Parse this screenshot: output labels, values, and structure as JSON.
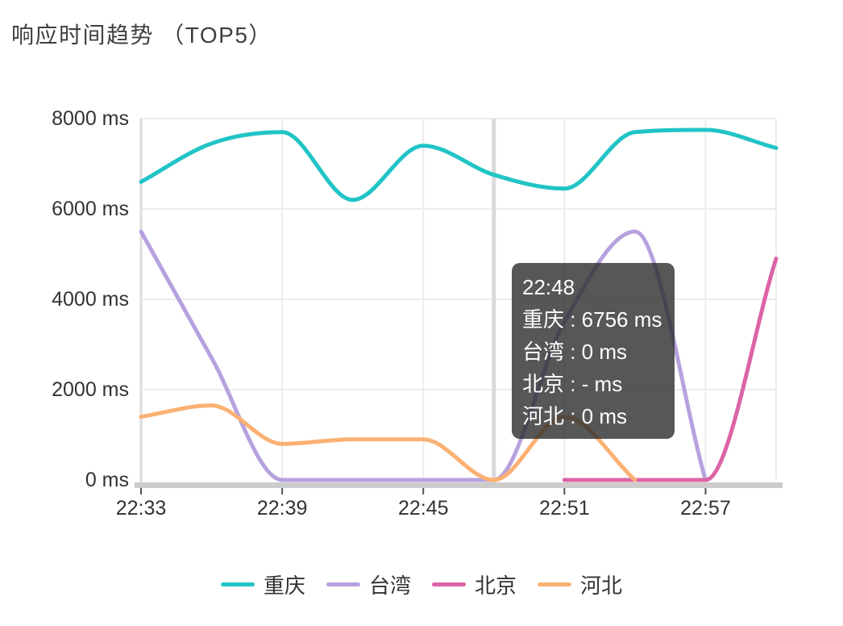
{
  "title": "响应时间趋势 （TOP5）",
  "chart_data": {
    "type": "line",
    "title": "响应时间趋势 （TOP5）",
    "smooth": true,
    "grid": true,
    "legend_position": "bottom",
    "unit": "ms",
    "ylim": [
      0,
      8000
    ],
    "x": [
      "22:33",
      "22:36",
      "22:39",
      "22:42",
      "22:45",
      "22:48",
      "22:51",
      "22:54",
      "22:57",
      "23:00"
    ],
    "x_axis_ticks": [
      "22:33",
      "22:39",
      "22:45",
      "22:51",
      "22:57"
    ],
    "y_axis_ticks": [
      {
        "value": 0,
        "label": "0 ms"
      },
      {
        "value": 2000,
        "label": "2000 ms"
      },
      {
        "value": 4000,
        "label": "4000 ms"
      },
      {
        "value": 6000,
        "label": "6000 ms"
      },
      {
        "value": 8000,
        "label": "8000 ms"
      }
    ],
    "series": [
      {
        "id": "chongqing",
        "name": "重庆",
        "color": "#21c4c6",
        "values": [
          6600,
          7450,
          7700,
          6200,
          7400,
          6756,
          6450,
          7700,
          7750,
          7350
        ]
      },
      {
        "id": "taiwan",
        "name": "台湾",
        "color": "#b6a2de",
        "values": [
          5500,
          2700,
          0,
          0,
          0,
          0,
          3500,
          5500,
          0,
          null
        ]
      },
      {
        "id": "beijing",
        "name": "北京",
        "color": "#dc64a6",
        "values": [
          null,
          null,
          null,
          null,
          null,
          null,
          0,
          0,
          0,
          4900
        ]
      },
      {
        "id": "hebei",
        "name": "河北",
        "color": "#fab173",
        "values": [
          1400,
          1650,
          800,
          900,
          900,
          0,
          1400,
          0,
          null,
          null
        ]
      }
    ],
    "hover_time": "22:48",
    "tooltip": {
      "time": "22:48",
      "rows": [
        {
          "id": "chongqing",
          "name": "重庆",
          "value": "6756 ms"
        },
        {
          "id": "taiwan",
          "name": "台湾",
          "value": "0 ms"
        },
        {
          "id": "beijing",
          "name": "北京",
          "value": "- ms"
        },
        {
          "id": "hebei",
          "name": "河北",
          "value": "0 ms"
        }
      ]
    },
    "style": {
      "grid_color": "#ececec",
      "axis_line_color": "#dcdcdc",
      "axis_band_color": "#cccccc",
      "hover_line_color": "#d9d9d9",
      "tick_color": "#555555",
      "text_color": "#333333"
    }
  }
}
